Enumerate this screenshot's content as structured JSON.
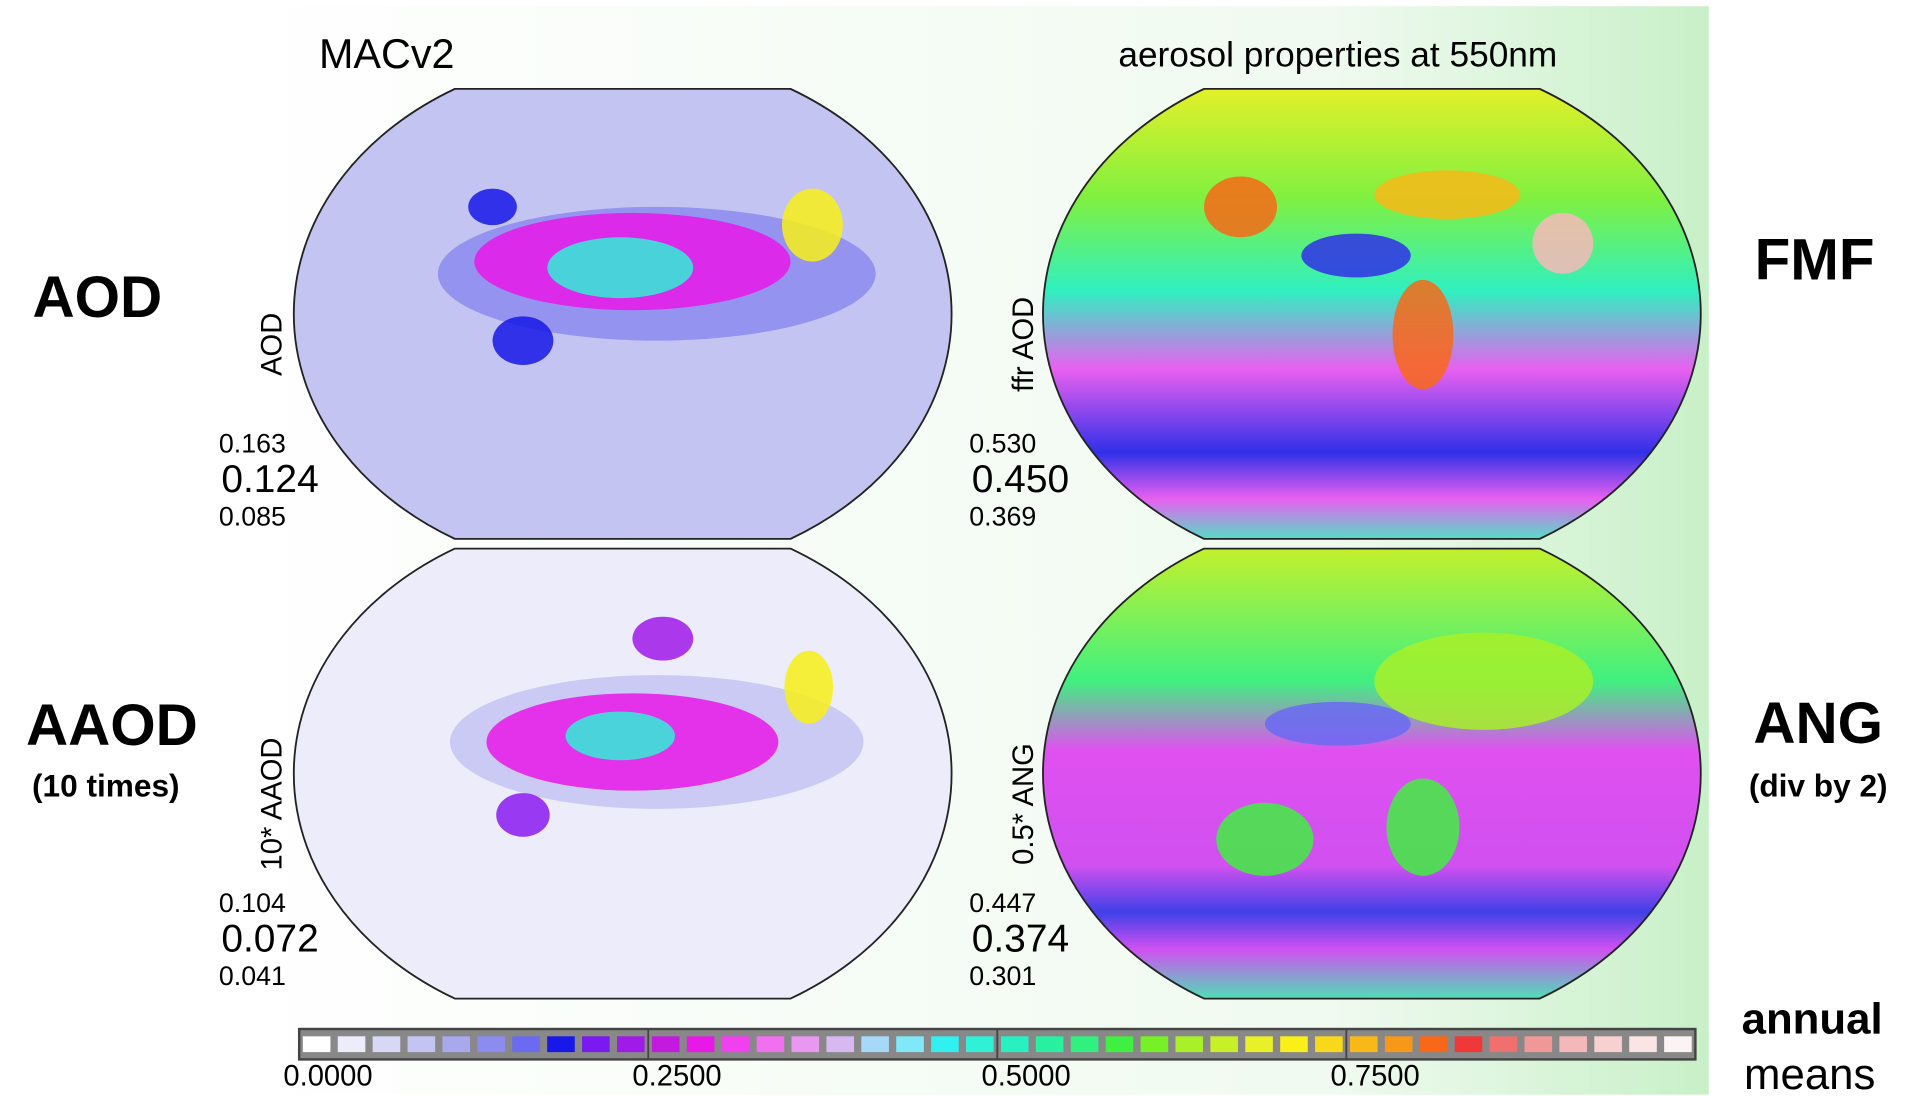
{
  "header": {
    "left_title": "MACv2",
    "right_title": "aerosol properties at 550nm"
  },
  "rows": [
    {
      "left_label": "AOD",
      "left_sublabel": null,
      "right_label": "FMF",
      "right_sublabel": null
    },
    {
      "left_label": "AAOD",
      "left_sublabel": "(10 times)",
      "right_label": "ANG",
      "right_sublabel": "(div by 2)"
    }
  ],
  "panels": [
    {
      "axis_label": "AOD",
      "stats": [
        "0.163",
        "0.124",
        "0.085"
      ]
    },
    {
      "axis_label": "ffr AOD",
      "stats": [
        "0.530",
        "0.450",
        "0.369"
      ]
    },
    {
      "axis_label": "10* AAOD",
      "stats": [
        "0.104",
        "0.072",
        "0.041"
      ]
    },
    {
      "axis_label": "0.5* ANG",
      "stats": [
        "0.447",
        "0.374",
        "0.301"
      ]
    }
  ],
  "colorbar": {
    "range": [
      0,
      1
    ],
    "ticks": [
      {
        "value": 0,
        "label": "0.0000"
      },
      {
        "value": 0.25,
        "label": "0.2500"
      },
      {
        "value": 0.5,
        "label": "0.5000"
      },
      {
        "value": 0.75,
        "label": "0.7500"
      }
    ],
    "colors": [
      "#ffffff",
      "#ececfb",
      "#d8d8f6",
      "#c4c4f2",
      "#a8a8ee",
      "#8c8cf0",
      "#6a6af2",
      "#1818e8",
      "#7a1af0",
      "#a01ae8",
      "#c41ae0",
      "#e818e8",
      "#f040f0",
      "#f070f0",
      "#e898f0",
      "#d8b8f0",
      "#a8d8f8",
      "#80e8f8",
      "#30f0f0",
      "#30f0d8",
      "#28f0c0",
      "#28f0a0",
      "#30f080",
      "#40f040",
      "#78f028",
      "#a8f028",
      "#c8f028",
      "#e8f028",
      "#f8f018",
      "#f8d818",
      "#f8b818",
      "#f89818",
      "#f86818",
      "#f03838",
      "#f07070",
      "#f09898",
      "#f4b8b8",
      "#f8d0d0",
      "#fae4e4",
      "#fcf4f4"
    ],
    "caption": [
      "annual",
      "means"
    ]
  }
}
